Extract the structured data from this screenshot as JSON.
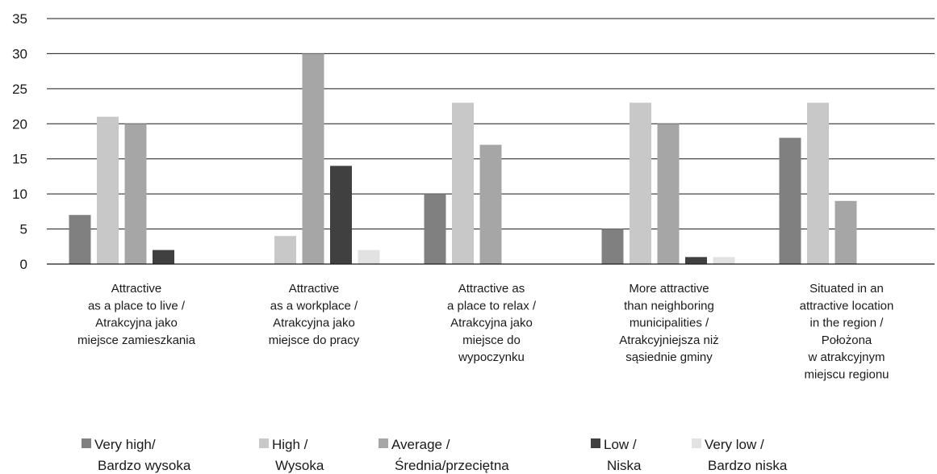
{
  "chart_data": {
    "type": "bar",
    "title": "",
    "xlabel": "",
    "ylabel": "",
    "ylim": [
      0,
      35
    ],
    "yticks": [
      0,
      5,
      10,
      15,
      20,
      25,
      30,
      35
    ],
    "grid": true,
    "legend_position": "bottom",
    "categories": [
      [
        "Attractive",
        "as a place to live /",
        "Atrakcyjna jako",
        "miejsce zamieszkania"
      ],
      [
        "Attractive",
        "as a workplace /",
        "Atrakcyjna jako",
        "miejsce do pracy"
      ],
      [
        "Attractive as",
        "a place to relax /",
        "Atrakcyjna jako",
        "miejsce do",
        "wypoczynku"
      ],
      [
        "More attractive",
        "than neighboring",
        "municipalities /",
        "Atrakcyjniejsza niż",
        "sąsiednie gminy"
      ],
      [
        "Situated in an",
        "attractive location",
        "in the region /",
        "Położona",
        "w atrakcyjnym",
        "miejscu regionu"
      ]
    ],
    "series": [
      {
        "name": [
          "Very high/",
          "Bardzo wysoka"
        ],
        "color": "#808080",
        "values": [
          7,
          0,
          10,
          5,
          18
        ]
      },
      {
        "name": [
          "High /",
          "Wysoka"
        ],
        "color": "#c8c8c8",
        "values": [
          21,
          4,
          23,
          23,
          23
        ]
      },
      {
        "name": [
          "Average /",
          "Średnia/przeciętna"
        ],
        "color": "#a6a6a6",
        "values": [
          20,
          30,
          17,
          20,
          9
        ]
      },
      {
        "name": [
          "Low /",
          "Niska"
        ],
        "color": "#404040",
        "values": [
          2,
          14,
          0,
          1,
          0
        ]
      },
      {
        "name": [
          "Very low /",
          "Bardzo niska"
        ],
        "color": "#e2e2e2",
        "values": [
          0,
          2,
          0,
          1,
          0
        ]
      }
    ]
  }
}
